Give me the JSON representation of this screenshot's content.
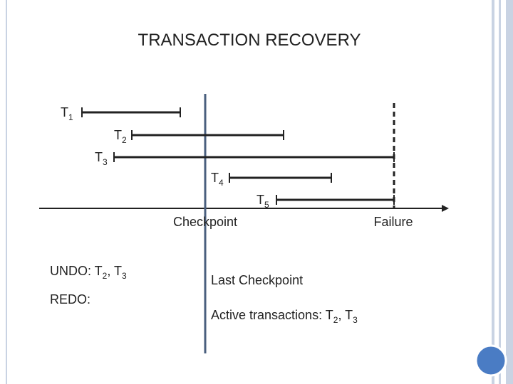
{
  "title": "TRANSACTION RECOVERY",
  "transactions": [
    {
      "label": [
        "T",
        "1"
      ]
    },
    {
      "label": [
        "T",
        "2"
      ]
    },
    {
      "label": [
        "T",
        "3"
      ]
    },
    {
      "label": [
        "T",
        "4"
      ]
    },
    {
      "label": [
        "T",
        "5"
      ]
    }
  ],
  "checkpoint": "Checkpoint",
  "failure": "Failure",
  "undo": [
    "UNDO: T",
    "2",
    ", T",
    "3"
  ],
  "redo": [
    "REDO:"
  ],
  "last_checkpoint": [
    "Last Checkpoint"
  ],
  "active": [
    "Active transactions: T",
    "2",
    ", T",
    "3"
  ]
}
